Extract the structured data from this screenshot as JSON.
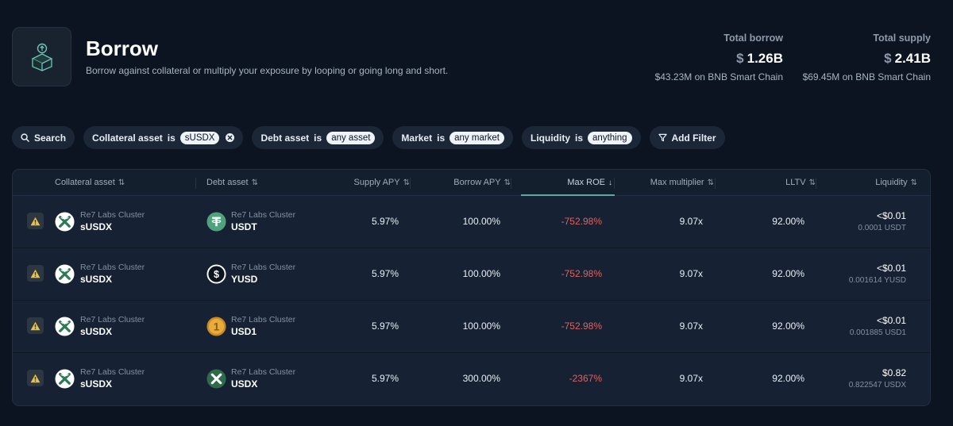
{
  "header": {
    "title": "Borrow",
    "subtitle": "Borrow against collateral or multiply your exposure by looping or going long and short.",
    "logo_icon": "box-upload-icon"
  },
  "stats": {
    "total_borrow": {
      "label": "Total borrow",
      "currency": "$",
      "value": "1.26B",
      "sub": "$43.23M on BNB Smart Chain"
    },
    "total_supply": {
      "label": "Total supply",
      "currency": "$",
      "value": "2.41B",
      "sub": "$69.45M on BNB Smart Chain"
    }
  },
  "filters": {
    "search": "Search",
    "collateral": {
      "label": "Collateral asset",
      "kw": "is",
      "value": "sUSDX"
    },
    "debt": {
      "label": "Debt asset",
      "kw": "is",
      "value": "any asset"
    },
    "market": {
      "label": "Market",
      "kw": "is",
      "value": "any market"
    },
    "liquidity": {
      "label": "Liquidity",
      "kw": "is",
      "value": "anything"
    },
    "add": "Add Filter"
  },
  "columns": {
    "collateral": "Collateral asset",
    "debt": "Debt asset",
    "supply_apy": "Supply APY",
    "borrow_apy": "Borrow APY",
    "max_roe": "Max ROE",
    "max_multiplier": "Max multiplier",
    "lltv": "LLTV",
    "liquidity": "Liquidity"
  },
  "rows": [
    {
      "collateral_cluster": "Re7 Labs Cluster",
      "collateral": "sUSDX",
      "debt_cluster": "Re7 Labs Cluster",
      "debt": "USDT",
      "debt_icon": "usdt-coin-icon",
      "supply_apy": "5.97%",
      "borrow_apy": "100.00%",
      "max_roe": "-752.98%",
      "max_multiplier": "9.07x",
      "lltv": "92.00%",
      "liquidity": "<$0.01",
      "liquidity_sub": "0.0001 USDT"
    },
    {
      "collateral_cluster": "Re7 Labs Cluster",
      "collateral": "sUSDX",
      "debt_cluster": "Re7 Labs Cluster",
      "debt": "YUSD",
      "debt_icon": "yusd-coin-icon",
      "supply_apy": "5.97%",
      "borrow_apy": "100.00%",
      "max_roe": "-752.98%",
      "max_multiplier": "9.07x",
      "lltv": "92.00%",
      "liquidity": "<$0.01",
      "liquidity_sub": "0.001614 YUSD"
    },
    {
      "collateral_cluster": "Re7 Labs Cluster",
      "collateral": "sUSDX",
      "debt_cluster": "Re7 Labs Cluster",
      "debt": "USD1",
      "debt_icon": "usd1-coin-icon",
      "supply_apy": "5.97%",
      "borrow_apy": "100.00%",
      "max_roe": "-752.98%",
      "max_multiplier": "9.07x",
      "lltv": "92.00%",
      "liquidity": "<$0.01",
      "liquidity_sub": "0.001885 USD1"
    },
    {
      "collateral_cluster": "Re7 Labs Cluster",
      "collateral": "sUSDX",
      "debt_cluster": "Re7 Labs Cluster",
      "debt": "USDX",
      "debt_icon": "usdx-coin-icon",
      "supply_apy": "5.97%",
      "borrow_apy": "300.00%",
      "max_roe": "-2367%",
      "max_multiplier": "9.07x",
      "lltv": "92.00%",
      "liquidity": "$0.82",
      "liquidity_sub": "0.822547 USDX"
    }
  ],
  "colors": {
    "negative": "#e0625e",
    "accent": "#5fa8a3",
    "warning": "#f0c23a"
  }
}
